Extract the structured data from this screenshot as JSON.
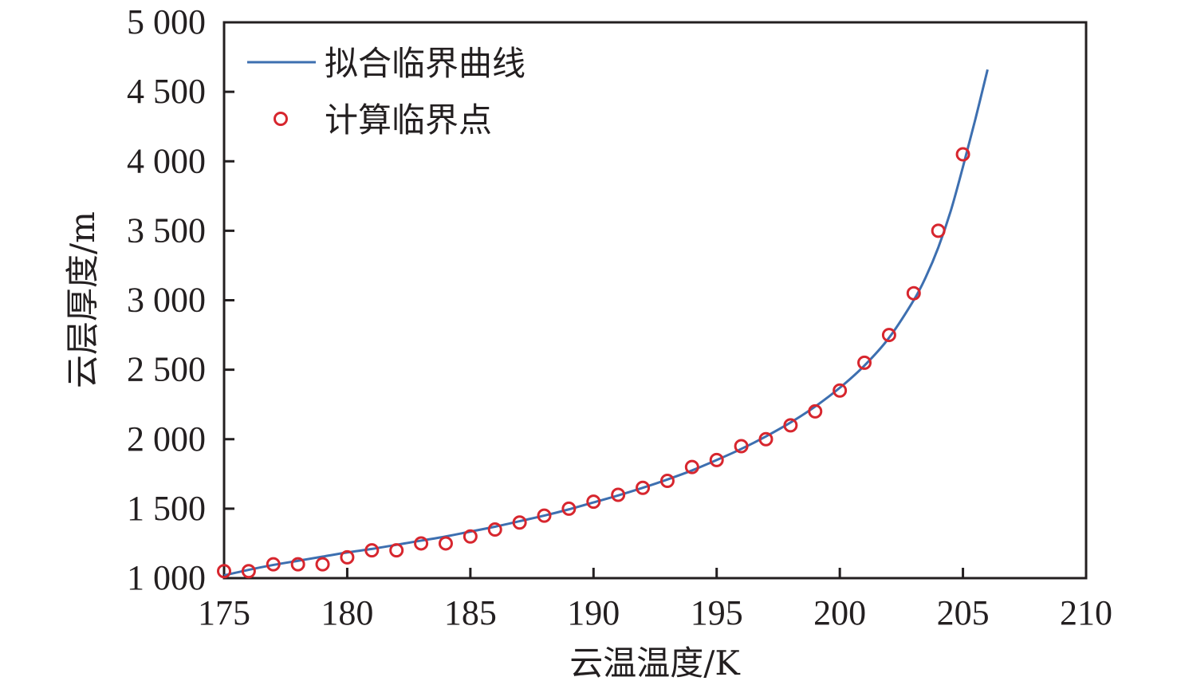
{
  "chart_data": {
    "type": "line",
    "title": "",
    "xlabel": "云温温度/K",
    "ylabel": "云层厚度/m",
    "xlim": [
      175,
      210
    ],
    "ylim": [
      1000,
      5000
    ],
    "x_ticks": [
      175,
      180,
      185,
      190,
      195,
      200,
      205,
      210
    ],
    "x_tick_labels": [
      "175",
      "180",
      "185",
      "190",
      "195",
      "200",
      "205",
      "210"
    ],
    "y_ticks": [
      1000,
      1500,
      2000,
      2500,
      3000,
      3500,
      4000,
      4500,
      5000
    ],
    "y_tick_labels": [
      "1 000",
      "1 500",
      "2 000",
      "2 500",
      "3 000",
      "3 500",
      "4 000",
      "4 500",
      "5 000"
    ],
    "grid": false,
    "legend_position": "top-left",
    "series": [
      {
        "name": "拟合临界曲线",
        "kind": "line",
        "color": "#3d6fb0",
        "x": [
          175,
          176,
          177,
          178,
          179,
          180,
          181,
          182,
          183,
          184,
          185,
          186,
          187,
          188,
          189,
          190,
          191,
          192,
          193,
          194,
          195,
          196,
          197,
          198,
          199,
          200,
          201,
          202,
          203,
          203.5,
          204,
          204.5,
          205,
          205.5,
          206
        ],
        "y": [
          1020,
          1060,
          1095,
          1125,
          1155,
          1185,
          1210,
          1240,
          1270,
          1300,
          1335,
          1370,
          1410,
          1450,
          1495,
          1545,
          1595,
          1650,
          1710,
          1775,
          1850,
          1930,
          2020,
          2120,
          2235,
          2370,
          2530,
          2730,
          3000,
          3170,
          3380,
          3640,
          3960,
          4300,
          4660
        ]
      },
      {
        "name": "计算临界点",
        "kind": "scatter",
        "color": "#d7262e",
        "x": [
          175,
          176,
          177,
          178,
          179,
          180,
          181,
          182,
          183,
          184,
          185,
          186,
          187,
          188,
          189,
          190,
          191,
          192,
          193,
          194,
          195,
          196,
          197,
          198,
          199,
          200,
          201,
          202,
          203,
          204,
          205
        ],
        "y": [
          1050,
          1050,
          1100,
          1100,
          1100,
          1150,
          1200,
          1200,
          1250,
          1250,
          1300,
          1350,
          1400,
          1450,
          1500,
          1550,
          1600,
          1650,
          1700,
          1800,
          1850,
          1950,
          2000,
          2100,
          2200,
          2350,
          2550,
          2750,
          3050,
          3500,
          4050
        ]
      }
    ]
  }
}
